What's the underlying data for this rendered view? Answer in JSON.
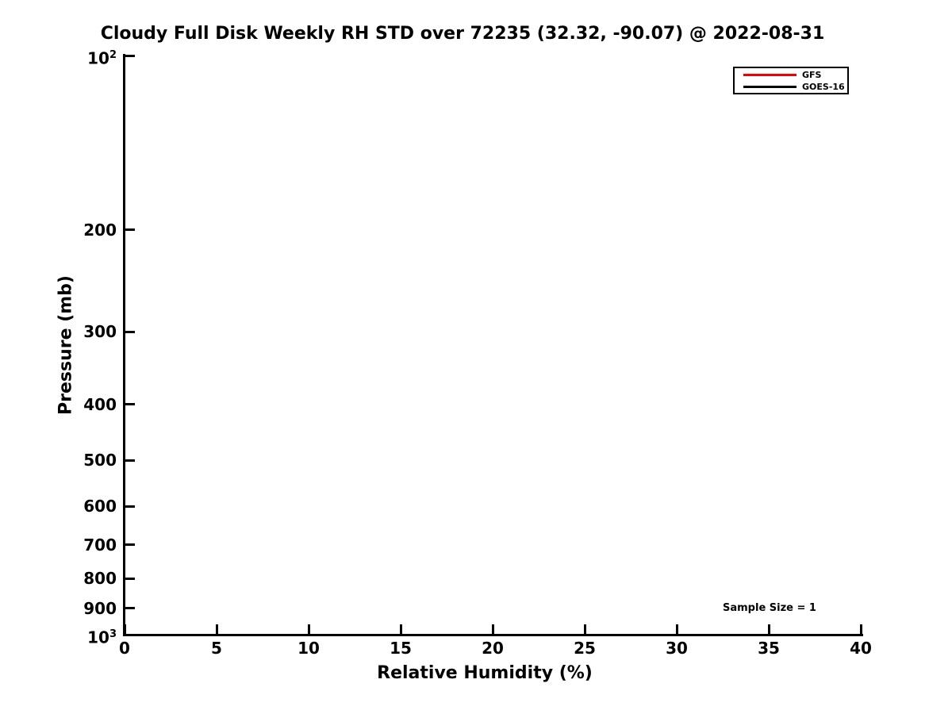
{
  "chart_data": {
    "type": "line",
    "title": "Cloudy Full Disk Weekly RH STD over 72235 (32.32, -90.07) @ 2022-08-31",
    "xlabel": "Relative Humidity (%)",
    "ylabel": "Pressure (mb)",
    "xlim": [
      0,
      40
    ],
    "xticks": [
      0,
      5,
      10,
      15,
      20,
      25,
      30,
      35,
      40
    ],
    "yscale": "log",
    "ylim": [
      100,
      1000
    ],
    "y_axis_direction": "inverted",
    "yticks": [
      {
        "value": 100,
        "base": "10",
        "exp": "2"
      },
      {
        "value": 200,
        "label": "200"
      },
      {
        "value": 300,
        "label": "300"
      },
      {
        "value": 400,
        "label": "400"
      },
      {
        "value": 500,
        "label": "500"
      },
      {
        "value": 600,
        "label": "600"
      },
      {
        "value": 700,
        "label": "700"
      },
      {
        "value": 800,
        "label": "800"
      },
      {
        "value": 900,
        "label": "900"
      },
      {
        "value": 1000,
        "base": "10",
        "exp": "3"
      }
    ],
    "grid": false,
    "legend": {
      "position": "upper-right",
      "entries": [
        {
          "name": "GFS",
          "color": "#ee0000"
        },
        {
          "name": "GOES-16",
          "color": "#000000"
        }
      ]
    },
    "series": [
      {
        "name": "GFS",
        "color": "#ee0000",
        "points": []
      },
      {
        "name": "GOES-16",
        "color": "#000000",
        "points": []
      }
    ],
    "annotations": [
      {
        "text": "Sample Size = 1",
        "x": 32.5,
        "y": 900
      }
    ]
  },
  "colors": {
    "background": "#ffffff",
    "axis": "#000000",
    "text": "#000000"
  }
}
